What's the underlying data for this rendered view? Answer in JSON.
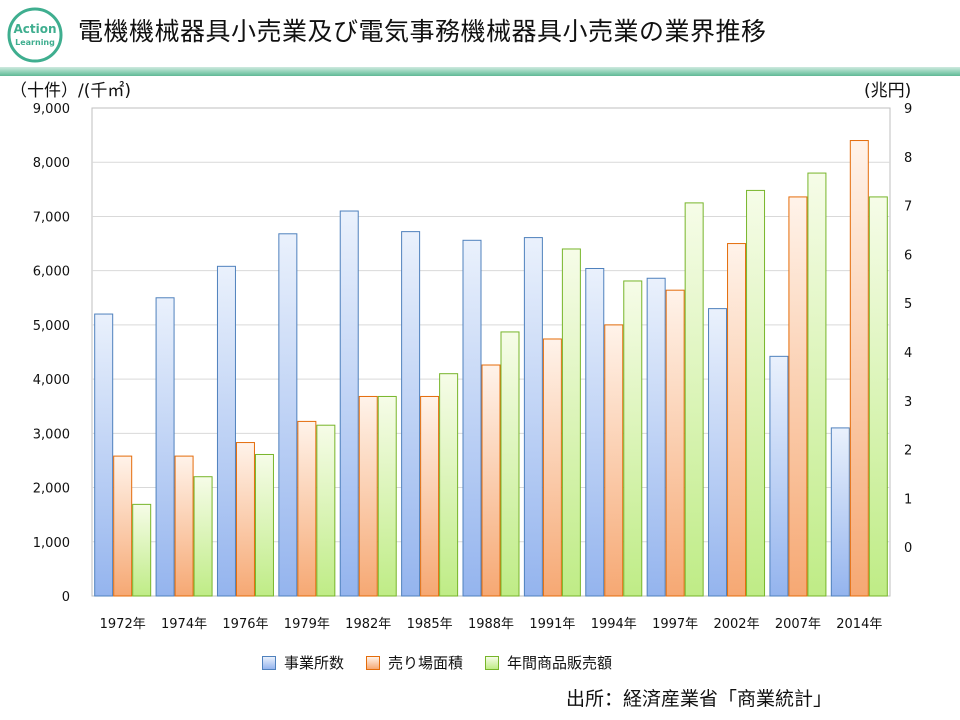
{
  "header": {
    "title": "電機機械器具小売業及び電気事務機械器具小売業の業界推移",
    "logo_text_1": "Action",
    "logo_text_2": "Learning"
  },
  "colors": {
    "blue_top": "#e8f0fb",
    "blue_bottom": "#9dbaf0",
    "blue_edge": "#4f81bd",
    "orange_top": "#fff1e8",
    "orange_bottom": "#f8b083",
    "orange_edge": "#e46c0a",
    "green_top": "#f4fbe4",
    "green_bottom": "#c6ef8e",
    "green_edge": "#77b52a",
    "teal": "#3fae8f"
  },
  "chart_data": {
    "type": "bar",
    "title": "電機機械器具小売業及び電気事務機械器具小売業の業界推移",
    "y_left_label": "（十件）/(千㎡)",
    "y_right_label": "(兆円)",
    "ylim_left": [
      0,
      9000
    ],
    "yticks_left": [
      "0",
      "1,000",
      "2,000",
      "3,000",
      "4,000",
      "5,000",
      "6,000",
      "7,000",
      "8,000",
      "9,000"
    ],
    "ylim_right": [
      -1,
      9
    ],
    "yticks_right": [
      "0",
      "1",
      "2",
      "3",
      "4",
      "5",
      "6",
      "7",
      "8",
      "9"
    ],
    "categories": [
      "1972年",
      "1974年",
      "1976年",
      "1979年",
      "1982年",
      "1985年",
      "1988年",
      "1991年",
      "1994年",
      "1997年",
      "2002年",
      "2007年",
      "2014年"
    ],
    "series": [
      {
        "name": "事業所数",
        "axis": "left",
        "values": [
          5200,
          5500,
          6080,
          6680,
          7100,
          6720,
          6560,
          6610,
          6040,
          5860,
          5300,
          4420,
          3100
        ]
      },
      {
        "name": "売り場面積",
        "axis": "left",
        "values": [
          2580,
          2580,
          2830,
          3220,
          3680,
          3680,
          4260,
          4740,
          5000,
          5640,
          6500,
          7360,
          8400
        ]
      },
      {
        "name": "年間商品販売額",
        "axis": "left",
        "values": [
          1690,
          2200,
          2610,
          3150,
          3680,
          4100,
          4870,
          6400,
          5810,
          7250,
          7480,
          7800,
          7360
        ]
      }
    ]
  },
  "legend": {
    "items": [
      "事業所数",
      "売り場面積",
      "年間商品販売額"
    ]
  },
  "footer": {
    "source": "出所：経済産業省「商業統計」"
  }
}
